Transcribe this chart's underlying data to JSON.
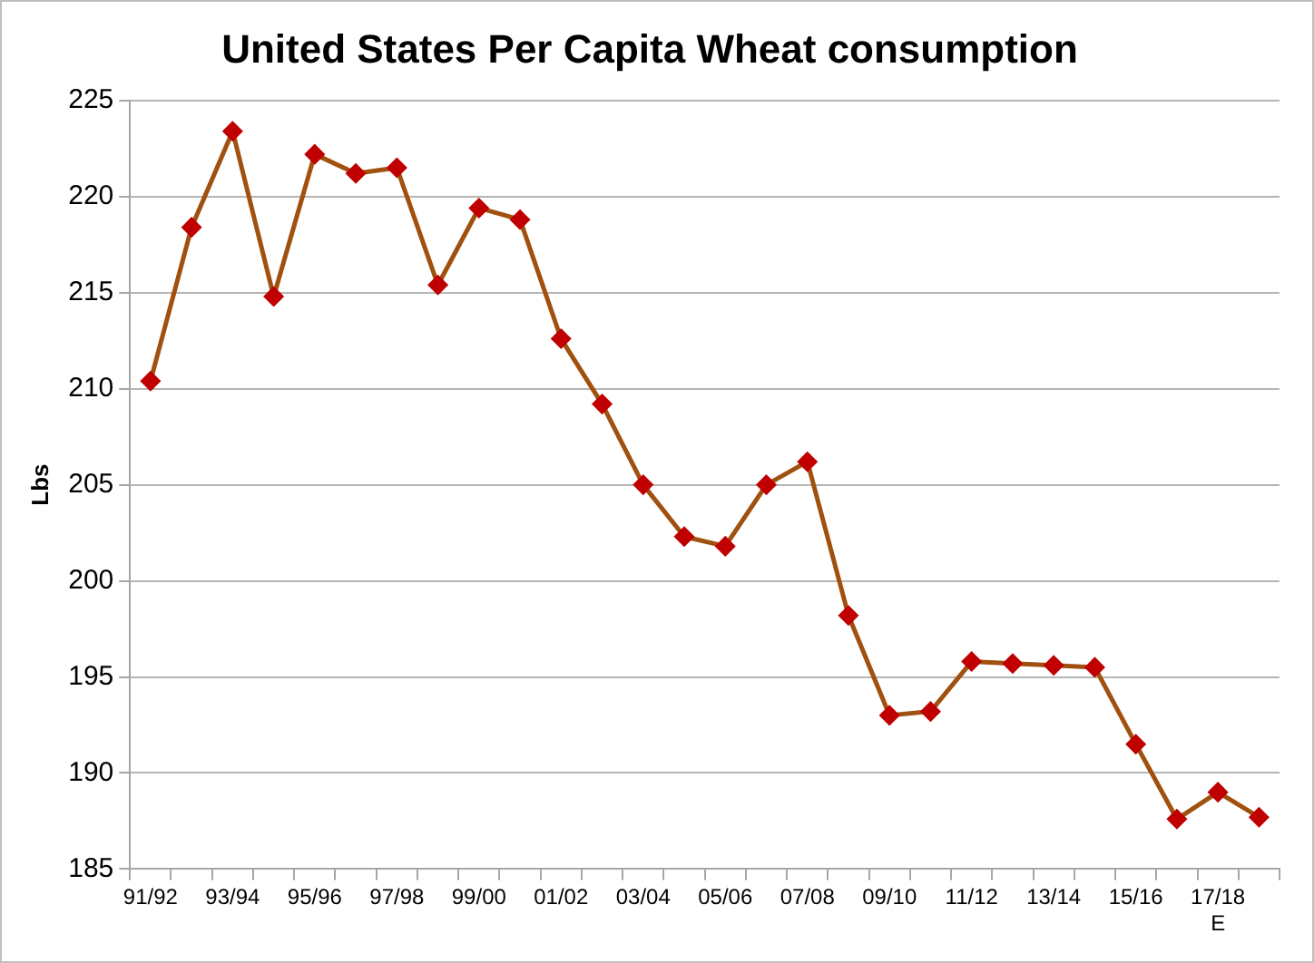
{
  "chart_data": {
    "type": "line",
    "title": "United States Per Capita Wheat consumption",
    "ylabel": "Lbs",
    "categories": [
      "91/92",
      null,
      "93/94",
      null,
      "95/96",
      null,
      "97/98",
      null,
      "99/00",
      null,
      "01/02",
      null,
      "03/04",
      null,
      "05/06",
      null,
      "07/08",
      null,
      "09/10",
      null,
      "11/12",
      null,
      "13/14",
      null,
      "15/16",
      null,
      "17/18\nE",
      null
    ],
    "series": [
      {
        "color": "#a0500f",
        "values": [
          210.4,
          218.4,
          223.4,
          214.8,
          222.2,
          221.2,
          221.5,
          215.4,
          219.4,
          218.8,
          212.6,
          209.2,
          205.0,
          202.3,
          201.8,
          205.0,
          206.2,
          198.2,
          193.0,
          193.2,
          195.8,
          195.7,
          195.6,
          195.5,
          191.5,
          187.6,
          189.0,
          187.7
        ]
      }
    ],
    "ylim": [
      185,
      225
    ],
    "yticks": [
      185,
      190,
      195,
      200,
      205,
      210,
      215,
      220,
      225
    ],
    "grid": "y",
    "marker": "diamond",
    "line_style": "solid",
    "legend": false
  }
}
